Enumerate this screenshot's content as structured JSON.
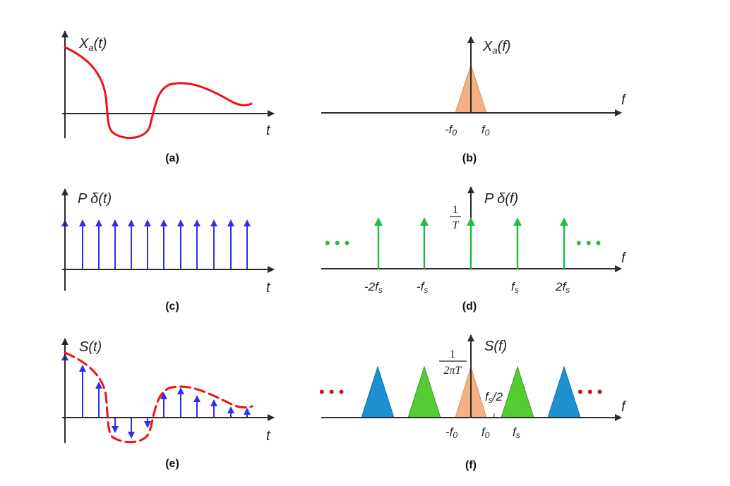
{
  "colors": {
    "axis": "#2b2b2b",
    "signal": "#ee1111",
    "impulse": "#2f2ff0",
    "comb": "#22bb44",
    "baseband": "#f5b183",
    "replica_green": "#55cc33",
    "replica_blue": "#1e90d0",
    "dots_red": "#cc1111"
  },
  "panels": {
    "a": {
      "caption": "(a)",
      "ylabel": "X",
      "ylabel_sub": "a",
      "ylabel_arg": "(t)",
      "xlabel": "t"
    },
    "b": {
      "caption": "(b)",
      "ylabel": "X",
      "ylabel_sub": "a",
      "ylabel_arg": "(f)",
      "xlabel": "f",
      "tick_neg": "-f",
      "tick_pos": "f",
      "tick_sub": "0"
    },
    "c": {
      "caption": "(c)",
      "ylabel": "P δ(t)",
      "xlabel": "t"
    },
    "d": {
      "caption": "(d)",
      "ylabel": "P δ(f)",
      "xlabel": "f",
      "amp_num": "1",
      "amp_den": "T",
      "dots": "• • •",
      "ticks": [
        {
          "pre": "-2f",
          "sub": "s"
        },
        {
          "pre": "-f",
          "sub": "s"
        },
        {
          "pre": "f",
          "sub": "s"
        },
        {
          "pre": "2f",
          "sub": "s"
        }
      ]
    },
    "e": {
      "caption": "(e)",
      "ylabel": "S(t)",
      "xlabel": "t"
    },
    "f": {
      "caption": "(f)",
      "ylabel": "S(f)",
      "xlabel": "f",
      "amp_num": "1",
      "amp_den": "2πT",
      "half_pre": "f",
      "half_sub": "s",
      "half_post": "/2",
      "tick_neg": "-f",
      "tick_pos": "f",
      "tick_sub": "0",
      "tick_fs_pre": "f",
      "tick_fs_sub": "s",
      "dots": "• • •"
    }
  }
}
